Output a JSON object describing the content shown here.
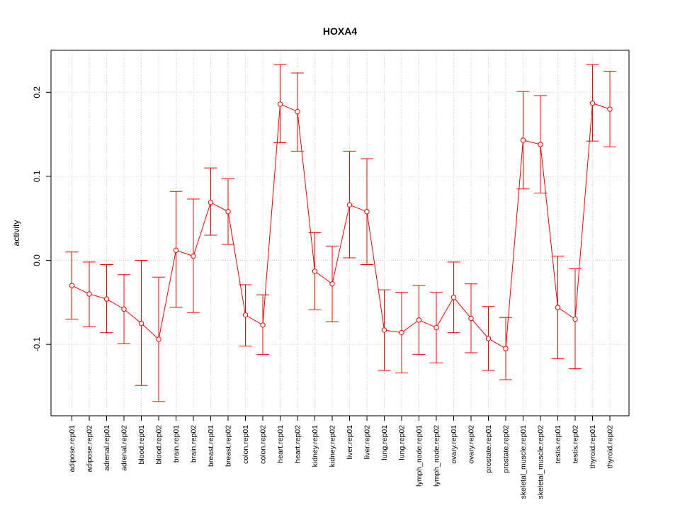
{
  "chart_data": {
    "type": "line",
    "title": "HOXA4",
    "xlabel": "",
    "ylabel": "activity",
    "ylim": [
      -0.185,
      0.25
    ],
    "yticks": [
      -0.1,
      0.0,
      0.1,
      0.2
    ],
    "ytick_labels": [
      "-0.1",
      "0.0",
      "0.1",
      "0.2"
    ],
    "grid": true,
    "color": "#ff0000",
    "grid_color": "#cccccc",
    "categories": [
      "adipose.rep01",
      "adipose.rep02",
      "adrenal.rep01",
      "adrenal.rep02",
      "blood.rep01",
      "blood.rep02",
      "brain.rep01",
      "brain.rep02",
      "breast.rep01",
      "breast.rep02",
      "colon.rep01",
      "colon.rep02",
      "heart.rep01",
      "heart.rep02",
      "kidney.rep01",
      "kidney.rep02",
      "liver.rep01",
      "liver.rep02",
      "lung.rep01",
      "lung.rep02",
      "lymph_node.rep01",
      "lymph_node.rep02",
      "ovary.rep01",
      "ovary.rep02",
      "prostate.rep01",
      "prostate.rep02",
      "skeletal_muscle.rep01",
      "skeletal_muscle.rep02",
      "testis.rep01",
      "testis.rep02",
      "thyroid.rep01",
      "thyroid.rep02"
    ],
    "series": [
      {
        "values": [
          -0.03,
          -0.04,
          -0.046,
          -0.058,
          -0.075,
          -0.094,
          0.012,
          0.005,
          0.069,
          0.058,
          -0.065,
          -0.077,
          0.186,
          0.177,
          -0.013,
          -0.028,
          0.066,
          0.058,
          -0.083,
          -0.086,
          -0.071,
          -0.08,
          -0.044,
          -0.069,
          -0.093,
          -0.105,
          0.143,
          0.138,
          -0.056,
          -0.07,
          0.187,
          0.18
        ],
        "upper": [
          0.01,
          -0.002,
          -0.005,
          -0.017,
          0.0,
          -0.02,
          0.082,
          0.073,
          0.11,
          0.097,
          -0.029,
          -0.041,
          0.233,
          0.223,
          0.033,
          0.017,
          0.13,
          0.121,
          -0.035,
          -0.038,
          -0.03,
          -0.038,
          -0.002,
          -0.028,
          -0.055,
          -0.068,
          0.201,
          0.196,
          0.005,
          -0.01,
          0.233,
          0.225
        ],
        "lower": [
          -0.07,
          -0.079,
          -0.086,
          -0.099,
          -0.149,
          -0.168,
          -0.056,
          -0.062,
          0.03,
          0.019,
          -0.102,
          -0.112,
          0.14,
          0.13,
          -0.059,
          -0.073,
          0.003,
          -0.005,
          -0.131,
          -0.134,
          -0.112,
          -0.122,
          -0.086,
          -0.11,
          -0.131,
          -0.142,
          0.085,
          0.08,
          -0.117,
          -0.129,
          0.142,
          0.135
        ]
      }
    ]
  }
}
